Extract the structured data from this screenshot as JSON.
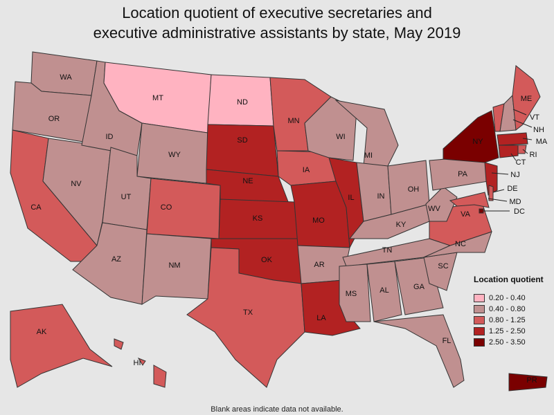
{
  "title_line1": "Location quotient of executive secretaries and",
  "title_line2": "executive administrative assistants by state, May 2019",
  "legend": {
    "title": "Location quotient",
    "bins": [
      {
        "label": "0.20 - 0.40",
        "color": "#ffb3c1"
      },
      {
        "label": "0.40 - 0.80",
        "color": "#c09090"
      },
      {
        "label": "0.80 - 1.25",
        "color": "#d35a5a"
      },
      {
        "label": "1.25 - 2.50",
        "color": "#b22222"
      },
      {
        "label": "2.50 - 3.50",
        "color": "#7a0000"
      }
    ]
  },
  "states": {
    "WA": "0.40 - 0.80",
    "OR": "0.40 - 0.80",
    "CA": "0.80 - 1.25",
    "NV": "0.40 - 0.80",
    "ID": "0.40 - 0.80",
    "MT": "0.20 - 0.40",
    "WY": "0.40 - 0.80",
    "UT": "0.40 - 0.80",
    "AZ": "0.40 - 0.80",
    "CO": "0.80 - 1.25",
    "NM": "0.40 - 0.80",
    "ND": "0.20 - 0.40",
    "SD": "1.25 - 2.50",
    "NE": "1.25 - 2.50",
    "KS": "1.25 - 2.50",
    "OK": "1.25 - 2.50",
    "TX": "0.80 - 1.25",
    "MN": "0.80 - 1.25",
    "IA": "0.80 - 1.25",
    "MO": "1.25 - 2.50",
    "AR": "0.40 - 0.80",
    "LA": "1.25 - 2.50",
    "WI": "0.40 - 0.80",
    "IL": "1.25 - 2.50",
    "MI": "0.40 - 0.80",
    "IN": "0.40 - 0.80",
    "OH": "0.40 - 0.80",
    "KY": "0.40 - 0.80",
    "TN": "0.40 - 0.80",
    "MS": "0.40 - 0.80",
    "AL": "0.40 - 0.80",
    "GA": "0.40 - 0.80",
    "FL": "0.40 - 0.80",
    "SC": "0.40 - 0.80",
    "NC": "0.40 - 0.80",
    "VA": "0.80 - 1.25",
    "WV": "0.40 - 0.80",
    "PA": "0.40 - 0.80",
    "NY": "2.50 - 3.50",
    "VT": "0.80 - 1.25",
    "NH": "0.40 - 0.80",
    "ME": "0.80 - 1.25",
    "MA": "1.25 - 2.50",
    "RI": "0.80 - 1.25",
    "CT": "1.25 - 2.50",
    "NJ": "1.25 - 2.50",
    "DE": "0.80 - 1.25",
    "MD": "0.80 - 1.25",
    "DC": "2.50 - 3.50",
    "AK": "0.80 - 1.25",
    "HI": "0.80 - 1.25",
    "PR": "2.50 - 3.50"
  },
  "footnote": "Blank areas indicate data not available."
}
